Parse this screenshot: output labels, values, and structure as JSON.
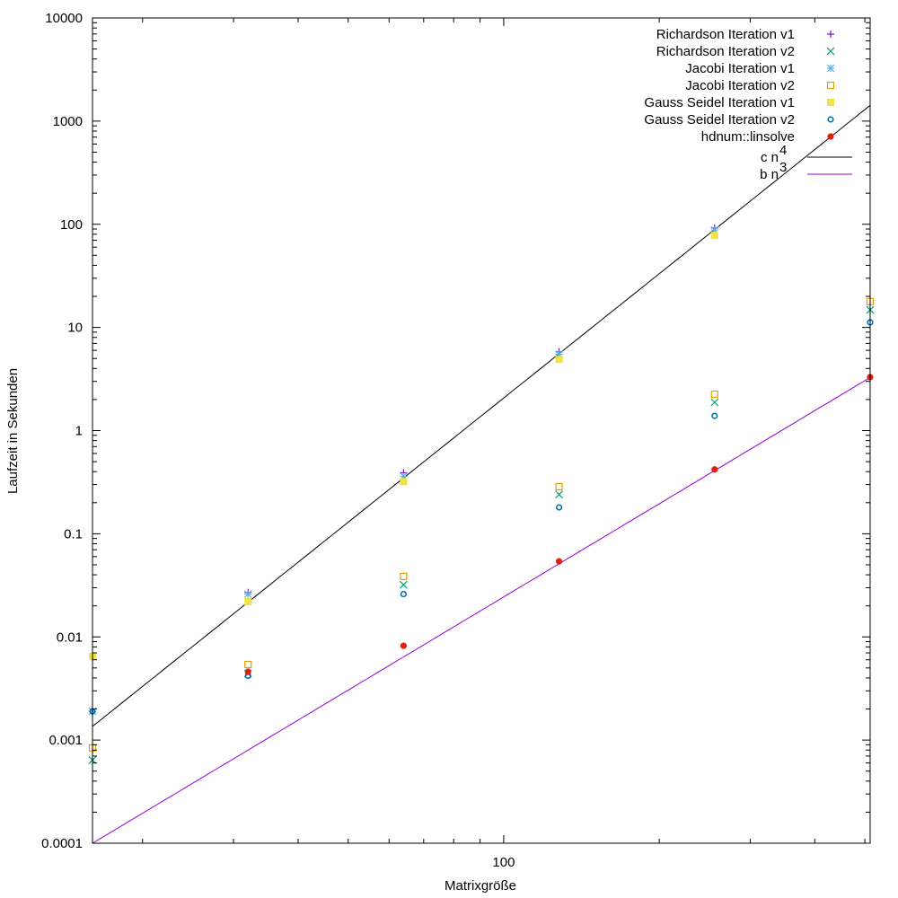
{
  "chart_data": {
    "type": "scatter",
    "title": "",
    "xlabel": "Matrixgröße",
    "ylabel": "Laufzeit in Sekunden",
    "xscale": "log",
    "yscale": "log",
    "xlim": [
      16,
      512
    ],
    "ylim": [
      0.0001,
      10000
    ],
    "x_tick_labels": [
      "100"
    ],
    "x_ticks_major": [
      100
    ],
    "y_tick_labels": [
      "0.0001",
      "0.001",
      "0.01",
      "0.1",
      "1",
      "10",
      "100",
      "1000",
      "10000"
    ],
    "grid": false,
    "legend_placement": "top-right",
    "series": [
      {
        "name": "Richardson Iteration v1",
        "marker": "plus",
        "color": "#9400d3",
        "x": [
          16,
          32,
          64,
          128,
          256
        ],
        "y": [
          0.0019,
          0.027,
          0.39,
          5.8,
          92
        ]
      },
      {
        "name": "Richardson Iteration v2",
        "marker": "cross",
        "color": "#009e73",
        "x": [
          16,
          32,
          64,
          128,
          256,
          512
        ],
        "y": [
          0.00064,
          0.0044,
          0.032,
          0.24,
          1.88,
          14.8
        ]
      },
      {
        "name": "Jacobi Iteration v1",
        "marker": "asterisk",
        "color": "#56b4e9",
        "x": [
          16,
          32,
          64,
          128,
          256
        ],
        "y": [
          0.0019,
          0.026,
          0.36,
          5.5,
          88
        ]
      },
      {
        "name": "Jacobi Iteration v2",
        "marker": "open-square",
        "color": "#e69f00",
        "x": [
          16,
          32,
          64,
          128,
          256,
          512
        ],
        "y": [
          0.00084,
          0.0054,
          0.0386,
          0.286,
          2.25,
          17.8
        ]
      },
      {
        "name": "Gauss Seidel Iteration v1",
        "marker": "filled-square",
        "color": "#f0e442",
        "x": [
          16,
          32,
          64,
          128,
          256
        ],
        "y": [
          0.0065,
          0.022,
          0.32,
          4.9,
          78
        ]
      },
      {
        "name": "Gauss Seidel Iteration v2",
        "marker": "open-circle",
        "color": "#0072b2",
        "x": [
          16,
          32,
          64,
          128,
          256,
          512
        ],
        "y": [
          0.0019,
          0.0042,
          0.026,
          0.18,
          1.39,
          11.2
        ]
      },
      {
        "name": "hdnum::linsolve",
        "marker": "filled-circle",
        "color": "#e51e10",
        "x": [
          32,
          64,
          128,
          256,
          512
        ],
        "y": [
          0.0046,
          0.0082,
          0.054,
          0.42,
          3.3
        ]
      }
    ],
    "fits": [
      {
        "name": "c n",
        "exponent_label": "4",
        "color": "#000000",
        "coefficient": 2.07e-08,
        "power": 4
      },
      {
        "name": "b n",
        "exponent_label": "3",
        "color": "#9400d3",
        "coefficient": 2.44e-08,
        "power": 3
      }
    ]
  }
}
